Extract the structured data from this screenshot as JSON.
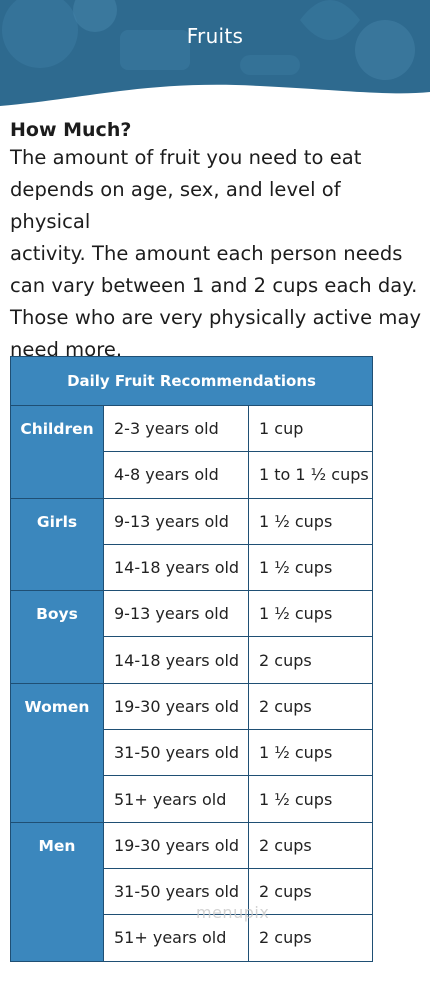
{
  "header": {
    "title": "Fruits"
  },
  "section": {
    "heading": "How Much?",
    "paragraph": [
      "The amount of fruit you need to eat",
      "depends on age, sex, and level of physical",
      "activity. The amount each person needs",
      "can vary between 1 and 2 cups each day.",
      "Those who are very physically active may",
      "need more."
    ]
  },
  "table": {
    "title": "Daily Fruit Recommendations",
    "groups": [
      {
        "label": "Children",
        "rows": [
          [
            "2-3 years old",
            "1 cup"
          ],
          [
            "4-8 years old",
            "1 to 1 ½ cups"
          ]
        ]
      },
      {
        "label": "Girls",
        "rows": [
          [
            "9-13 years old",
            "1 ½ cups"
          ],
          [
            "14-18 years old",
            "1 ½ cups"
          ]
        ]
      },
      {
        "label": "Boys",
        "rows": [
          [
            "9-13 years old",
            "1 ½ cups"
          ],
          [
            "14-18 years old",
            "2 cups"
          ]
        ]
      },
      {
        "label": "Women",
        "rows": [
          [
            "19-30 years old",
            "2 cups"
          ],
          [
            "31-50 years old",
            "1 ½ cups"
          ],
          [
            "51+ years old",
            "1 ½ cups"
          ]
        ]
      },
      {
        "label": "Men",
        "rows": [
          [
            "19-30 years old",
            "2 cups"
          ],
          [
            "31-50 years old",
            "2 cups"
          ],
          [
            "51+ years old",
            "2 cups"
          ]
        ]
      }
    ]
  },
  "watermark": "menupix",
  "colors": {
    "header_bg": "#2e6a8f",
    "table_header": "#3b87bd",
    "border": "#1f4f74"
  }
}
